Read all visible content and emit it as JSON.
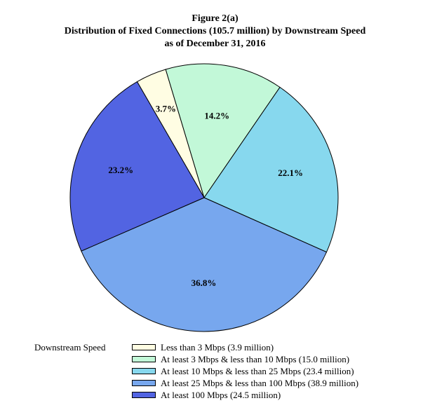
{
  "figure": {
    "number": "Figure 2(a)",
    "title_line1": "Distribution of Fixed Connections (105.7 million) by Downstream Speed",
    "title_line2": "as of December 31, 2016"
  },
  "legend": {
    "heading": "Downstream Speed"
  },
  "chart_data": {
    "type": "pie",
    "title": "Distribution of Fixed Connections (105.7 million) by Downstream Speed as of December 31, 2016",
    "legend_title": "Downstream Speed",
    "legend_position": "bottom",
    "slices": [
      {
        "label": "Less than 3 Mbps (3.9 million)",
        "value": 3.7,
        "display": "3.7%",
        "color": "#fffde3"
      },
      {
        "label": "At least 3 Mbps & less than 10 Mbps (15.0 million)",
        "value": 14.2,
        "display": "14.2%",
        "color": "#c2f8d8"
      },
      {
        "label": "At least 10 Mbps & less than 25 Mbps (23.4 million)",
        "value": 22.1,
        "display": "22.1%",
        "color": "#87d8ee"
      },
      {
        "label": "At least 25 Mbps & less than 100 Mbps (38.9 million)",
        "value": 36.8,
        "display": "36.8%",
        "color": "#77a7ee"
      },
      {
        "label": "At least 100 Mbps (24.5 million)",
        "value": 23.2,
        "display": "23.2%",
        "color": "#5264e2"
      }
    ]
  }
}
